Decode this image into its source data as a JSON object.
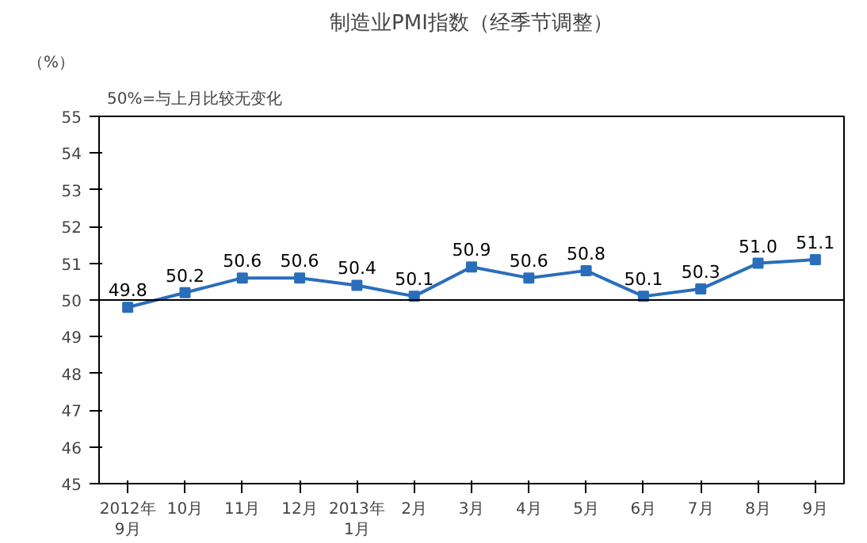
{
  "chart_data": {
    "type": "line",
    "title": "制造业PMI指数（经季节调整）",
    "ylabel": "（%）",
    "annotations": [
      "50%=与上月比较无变化"
    ],
    "categories": [
      "2012年\n9月",
      "10月",
      "11月",
      "12月",
      "2013年\n1月",
      "2月",
      "3月",
      "4月",
      "5月",
      "6月",
      "7月",
      "8月",
      "9月"
    ],
    "series": [
      {
        "color": "#2a6ebb",
        "values": [
          49.8,
          50.2,
          50.6,
          50.6,
          50.4,
          50.1,
          50.9,
          50.6,
          50.8,
          50.1,
          50.3,
          51.0,
          51.1
        ]
      }
    ],
    "value_labels": [
      "49.8",
      "50.2",
      "50.6",
      "50.6",
      "50.4",
      "50.1",
      "50.9",
      "50.6",
      "50.8",
      "50.1",
      "50.3",
      "51.0",
      "51.1"
    ],
    "ylim": [
      45,
      55
    ],
    "yticks": [
      45,
      46,
      47,
      48,
      49,
      50,
      51,
      52,
      53,
      54,
      55
    ],
    "ref_lines": [
      {
        "axis": "y",
        "value": 50,
        "color": "#000000"
      }
    ],
    "grid": false,
    "marker": "square",
    "line_style": "solid"
  }
}
